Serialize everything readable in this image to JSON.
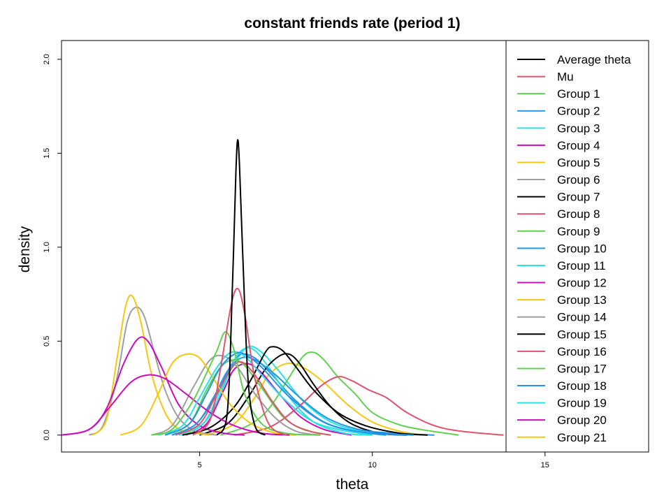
{
  "chart_data": {
    "type": "line",
    "title": "constant friends rate (period 1)",
    "xlabel": "theta",
    "ylabel": "density",
    "xlim": [
      1.0,
      18.0
    ],
    "ylim": [
      -0.09,
      2.1
    ],
    "xticks": [
      5,
      10,
      15
    ],
    "yticks": [
      0.0,
      0.5,
      1.0,
      1.5,
      2.0
    ],
    "ytick_labels": [
      "0.0",
      "0.5",
      "1.0",
      "1.5",
      "2.0"
    ],
    "grid": false,
    "legend_position": "right",
    "series": [
      {
        "name": "Average theta",
        "color": "#000000",
        "x": [
          5.5,
          5.8,
          5.95,
          6.05,
          6.1,
          6.15,
          6.25,
          6.4,
          6.6,
          6.9
        ],
        "y": [
          0.0,
          0.12,
          0.8,
          1.4,
          1.57,
          1.45,
          0.95,
          0.3,
          0.05,
          0.0
        ]
      },
      {
        "name": "Mu",
        "color": "#DF536B",
        "x": [
          4.8,
          5.3,
          5.6,
          5.9,
          6.1,
          6.3,
          6.6,
          7.0,
          7.5
        ],
        "y": [
          0.0,
          0.08,
          0.35,
          0.68,
          0.78,
          0.65,
          0.3,
          0.06,
          0.0
        ]
      },
      {
        "name": "Group 1",
        "color": "#61D04F",
        "x": [
          3.6,
          4.2,
          4.8,
          5.2,
          5.5,
          5.75,
          6.0,
          6.3,
          6.8,
          7.5,
          8.5
        ],
        "y": [
          0.0,
          0.03,
          0.18,
          0.33,
          0.45,
          0.55,
          0.45,
          0.22,
          0.06,
          0.01,
          0.0
        ]
      },
      {
        "name": "Group 2",
        "color": "#2297E6",
        "x": [
          4.0,
          4.7,
          5.2,
          5.6,
          6.0,
          6.3,
          6.8,
          7.5,
          8.3,
          9.0,
          10.0,
          11.2
        ],
        "y": [
          0.0,
          0.06,
          0.22,
          0.36,
          0.43,
          0.43,
          0.36,
          0.22,
          0.1,
          0.04,
          0.01,
          0.0
        ]
      },
      {
        "name": "Group 3",
        "color": "#28E2E5",
        "x": [
          3.8,
          4.5,
          5.0,
          5.5,
          5.9,
          6.3,
          6.8,
          7.4,
          8.2,
          9.0,
          10.0
        ],
        "y": [
          0.0,
          0.05,
          0.2,
          0.36,
          0.44,
          0.42,
          0.32,
          0.2,
          0.08,
          0.03,
          0.0
        ]
      },
      {
        "name": "Group 4",
        "color": "#CD0BBC",
        "x": [
          1.0,
          1.8,
          2.4,
          3.0,
          3.5,
          4.0,
          4.6,
          5.3,
          6.0,
          6.8,
          7.6
        ],
        "y": [
          0.0,
          0.03,
          0.15,
          0.28,
          0.32,
          0.3,
          0.22,
          0.12,
          0.05,
          0.01,
          0.0
        ]
      },
      {
        "name": "Group 5",
        "color": "#F5C710",
        "x": [
          2.7,
          3.3,
          3.8,
          4.2,
          4.6,
          5.0,
          5.4,
          5.9,
          6.5,
          7.2,
          7.8
        ],
        "y": [
          0.0,
          0.05,
          0.22,
          0.38,
          0.43,
          0.41,
          0.3,
          0.16,
          0.06,
          0.01,
          0.0
        ]
      },
      {
        "name": "Group 6",
        "color": "#9E9E9E",
        "x": [
          3.6,
          4.2,
          4.8,
          5.3,
          5.7,
          6.1,
          6.6,
          7.2,
          7.8,
          8.5
        ],
        "y": [
          0.0,
          0.05,
          0.25,
          0.4,
          0.42,
          0.36,
          0.22,
          0.09,
          0.02,
          0.0
        ]
      },
      {
        "name": "Group 7",
        "color": "#000000",
        "x": [
          4.5,
          5.3,
          6.0,
          6.5,
          6.9,
          7.1,
          7.4,
          7.8,
          8.3,
          9.0,
          9.8,
          10.8,
          11.6
        ],
        "y": [
          0.0,
          0.04,
          0.15,
          0.3,
          0.44,
          0.47,
          0.45,
          0.36,
          0.24,
          0.12,
          0.05,
          0.01,
          0.0
        ]
      },
      {
        "name": "Group 8",
        "color": "#DF536B",
        "x": [
          4.3,
          5.0,
          5.5,
          5.9,
          6.2,
          6.6,
          7.1,
          7.6,
          8.2,
          8.8
        ],
        "y": [
          0.0,
          0.06,
          0.22,
          0.35,
          0.39,
          0.32,
          0.18,
          0.07,
          0.02,
          0.0
        ]
      },
      {
        "name": "Group 9",
        "color": "#61D04F",
        "x": [
          4.0,
          4.7,
          5.2,
          5.6,
          5.95,
          6.3,
          6.8,
          7.4,
          8.0,
          8.8
        ],
        "y": [
          0.0,
          0.06,
          0.24,
          0.36,
          0.4,
          0.37,
          0.25,
          0.1,
          0.03,
          0.0
        ]
      },
      {
        "name": "Group 10",
        "color": "#2297E6",
        "x": [
          4.2,
          4.9,
          5.4,
          5.8,
          6.2,
          6.6,
          7.2,
          7.9,
          8.7,
          9.6,
          10.6,
          11.8
        ],
        "y": [
          0.0,
          0.06,
          0.2,
          0.34,
          0.41,
          0.4,
          0.32,
          0.2,
          0.09,
          0.03,
          0.01,
          0.0
        ]
      },
      {
        "name": "Group 11",
        "color": "#28E2E5",
        "x": [
          4.5,
          5.2,
          5.7,
          6.0,
          6.3,
          6.6,
          7.0,
          7.6,
          8.3,
          9.2,
          10.0
        ],
        "y": [
          0.0,
          0.08,
          0.26,
          0.4,
          0.46,
          0.45,
          0.36,
          0.2,
          0.07,
          0.01,
          0.0
        ]
      },
      {
        "name": "Group 12",
        "color": "#CD0BBC",
        "x": [
          1.0,
          1.8,
          2.3,
          2.8,
          3.2,
          3.5,
          3.9,
          4.4,
          5.0,
          5.7,
          6.3
        ],
        "y": [
          0.0,
          0.03,
          0.14,
          0.38,
          0.51,
          0.5,
          0.36,
          0.16,
          0.05,
          0.01,
          0.0
        ]
      },
      {
        "name": "Group 13",
        "color": "#F5C710",
        "x": [
          1.9,
          2.3,
          2.6,
          2.85,
          3.05,
          3.3,
          3.6,
          4.0,
          4.4,
          4.9,
          5.3
        ],
        "y": [
          0.0,
          0.08,
          0.4,
          0.68,
          0.74,
          0.6,
          0.33,
          0.12,
          0.03,
          0.01,
          0.0
        ]
      },
      {
        "name": "Group 14",
        "color": "#9E9E9E",
        "x": [
          1.8,
          2.2,
          2.6,
          2.9,
          3.15,
          3.4,
          3.7,
          4.0,
          4.4,
          4.9,
          5.5
        ],
        "y": [
          0.0,
          0.05,
          0.3,
          0.6,
          0.68,
          0.63,
          0.43,
          0.24,
          0.09,
          0.02,
          0.0
        ]
      },
      {
        "name": "Group 15",
        "color": "#000000",
        "x": [
          5.0,
          5.8,
          6.4,
          6.9,
          7.3,
          7.6,
          7.9,
          8.3,
          8.8,
          9.4,
          10.2,
          11.0
        ],
        "y": [
          0.0,
          0.06,
          0.2,
          0.35,
          0.42,
          0.43,
          0.38,
          0.27,
          0.15,
          0.06,
          0.01,
          0.0
        ]
      },
      {
        "name": "Group 16",
        "color": "#DF536B",
        "x": [
          6.0,
          7.0,
          7.8,
          8.5,
          9.0,
          9.4,
          9.9,
          10.4,
          11.0,
          11.8,
          12.6,
          13.8
        ],
        "y": [
          0.0,
          0.04,
          0.14,
          0.26,
          0.31,
          0.29,
          0.24,
          0.2,
          0.12,
          0.05,
          0.02,
          0.0
        ]
      },
      {
        "name": "Group 17",
        "color": "#61D04F",
        "x": [
          5.6,
          6.4,
          7.0,
          7.6,
          8.0,
          8.3,
          8.6,
          9.0,
          9.5,
          10.0,
          10.7,
          11.4,
          12.5
        ],
        "y": [
          0.0,
          0.05,
          0.14,
          0.31,
          0.42,
          0.44,
          0.4,
          0.31,
          0.22,
          0.12,
          0.06,
          0.03,
          0.0
        ]
      },
      {
        "name": "Group 18",
        "color": "#2297E6",
        "x": [
          4.2,
          4.9,
          5.5,
          5.9,
          6.2,
          6.6,
          7.1,
          7.8,
          8.6,
          9.5,
          10.4
        ],
        "y": [
          0.0,
          0.06,
          0.22,
          0.37,
          0.43,
          0.41,
          0.32,
          0.18,
          0.07,
          0.02,
          0.0
        ]
      },
      {
        "name": "Group 19",
        "color": "#28E2E5",
        "x": [
          4.4,
          5.1,
          5.6,
          6.0,
          6.4,
          6.8,
          7.3,
          8.0,
          8.8,
          9.7,
          10.6,
          11.6
        ],
        "y": [
          0.0,
          0.06,
          0.24,
          0.38,
          0.47,
          0.44,
          0.34,
          0.18,
          0.07,
          0.02,
          0.01,
          0.0
        ]
      },
      {
        "name": "Group 20",
        "color": "#CD0BBC",
        "x": [
          4.6,
          5.2,
          5.7,
          6.0,
          6.4,
          6.8,
          7.3,
          7.9,
          8.6,
          9.4
        ],
        "y": [
          0.0,
          0.06,
          0.24,
          0.35,
          0.38,
          0.33,
          0.22,
          0.1,
          0.03,
          0.0
        ]
      },
      {
        "name": "Group 21",
        "color": "#F5C710",
        "x": [
          5.2,
          6.0,
          6.6,
          7.0,
          7.5,
          8.0,
          8.6,
          9.3,
          10.0,
          10.8,
          11.5
        ],
        "y": [
          0.0,
          0.06,
          0.2,
          0.32,
          0.38,
          0.36,
          0.28,
          0.16,
          0.07,
          0.02,
          0.0
        ]
      }
    ]
  }
}
